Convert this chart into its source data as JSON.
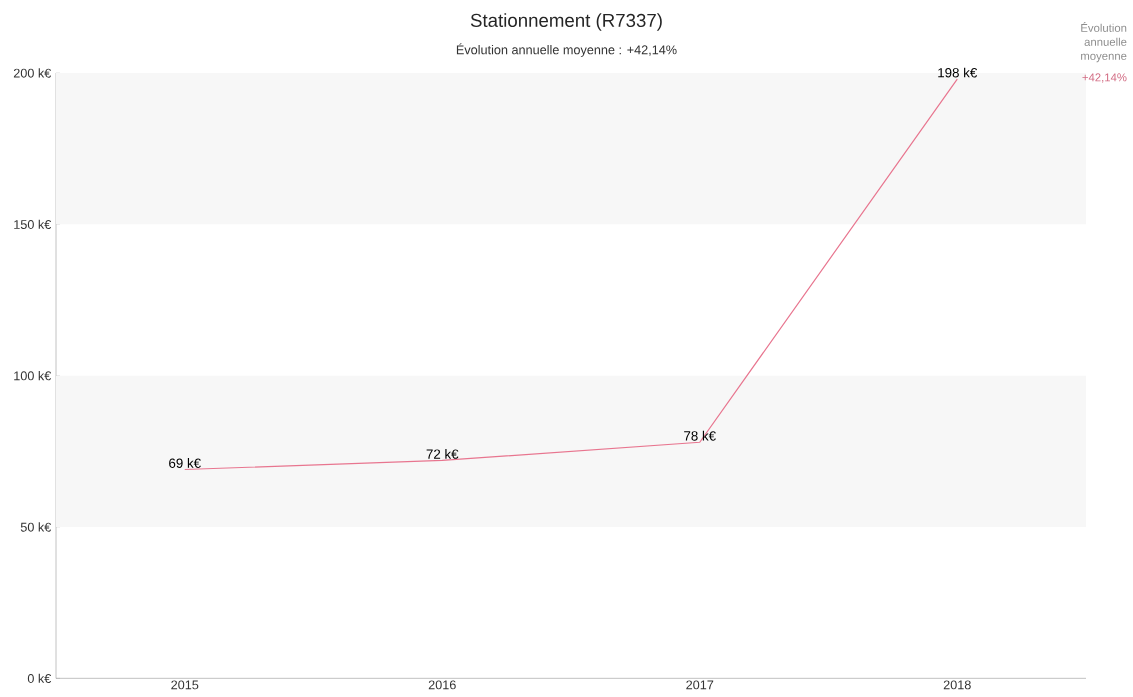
{
  "chart_data": {
    "type": "line",
    "title": "Stationnement (R7337)",
    "subtitle": "Évolution annuelle moyenne : +42,14%",
    "categories": [
      "2015",
      "2016",
      "2017",
      "2018"
    ],
    "values": [
      69,
      72,
      78,
      198
    ],
    "value_labels": [
      "69 k€",
      "72 k€",
      "78 k€",
      "198 k€"
    ],
    "color": "#e8758f",
    "ylim": [
      0,
      200
    ],
    "yticks": [
      {
        "value": 0,
        "label": "0 k€"
      },
      {
        "value": 50,
        "label": "50 k€"
      },
      {
        "value": 100,
        "label": "100 k€"
      },
      {
        "value": 150,
        "label": "150 k€"
      },
      {
        "value": 200,
        "label": "200 k€"
      }
    ],
    "bands": [
      {
        "axis": "y",
        "from": 50,
        "to": 100,
        "color": "#f7f7f7"
      },
      {
        "axis": "y",
        "from": 150,
        "to": 200,
        "color": "#f7f7f7"
      }
    ],
    "annotations": [
      "Évolution annuelle moyenne",
      "+42,14%"
    ],
    "grid": false,
    "marker": "none",
    "line_style": "solid"
  }
}
